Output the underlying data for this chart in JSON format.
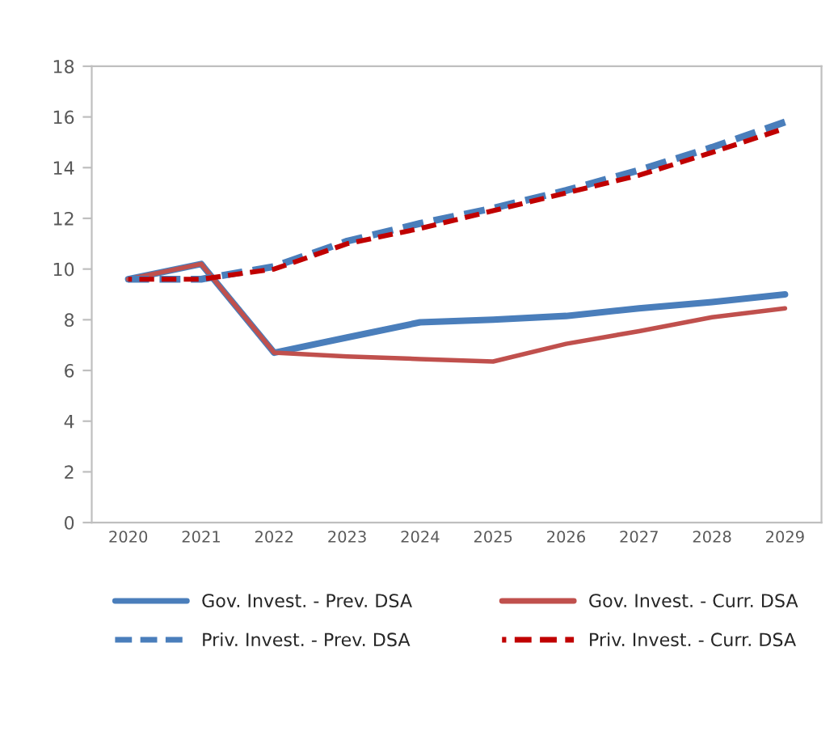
{
  "chart_data": {
    "type": "line",
    "categories": [
      "2020",
      "2021",
      "2022",
      "2023",
      "2024",
      "2025",
      "2026",
      "2027",
      "2028",
      "2029"
    ],
    "ylim": [
      0,
      18
    ],
    "yticks": [
      0,
      2,
      4,
      6,
      8,
      10,
      12,
      14,
      16,
      18
    ],
    "grid": false,
    "legend": "bottom",
    "marker": "none",
    "series": [
      {
        "name": "Gov. Invest. - Prev. DSA",
        "color": "#4a7ebb",
        "line_style": "solid",
        "values": [
          9.6,
          10.2,
          6.7,
          7.3,
          7.9,
          8.0,
          8.15,
          8.45,
          8.7,
          9.0
        ]
      },
      {
        "name": "Gov. Invest. - Curr. DSA",
        "color": "#c0504d",
        "line_style": "solid",
        "values": [
          9.6,
          10.2,
          6.7,
          6.55,
          6.45,
          6.35,
          7.05,
          7.55,
          8.1,
          8.45
        ]
      },
      {
        "name": "Priv. Invest. - Prev. DSA",
        "color": "#4a7ebb",
        "line_style": "dashed",
        "values": [
          9.6,
          9.6,
          10.1,
          11.1,
          11.8,
          12.4,
          13.1,
          13.9,
          14.8,
          15.8
        ]
      },
      {
        "name": "Priv. Invest. - Curr. DSA",
        "color": "#c00000",
        "line_style": "dashed",
        "values": [
          9.6,
          9.6,
          10.0,
          11.0,
          11.6,
          12.3,
          13.0,
          13.7,
          14.6,
          15.55
        ]
      }
    ]
  }
}
